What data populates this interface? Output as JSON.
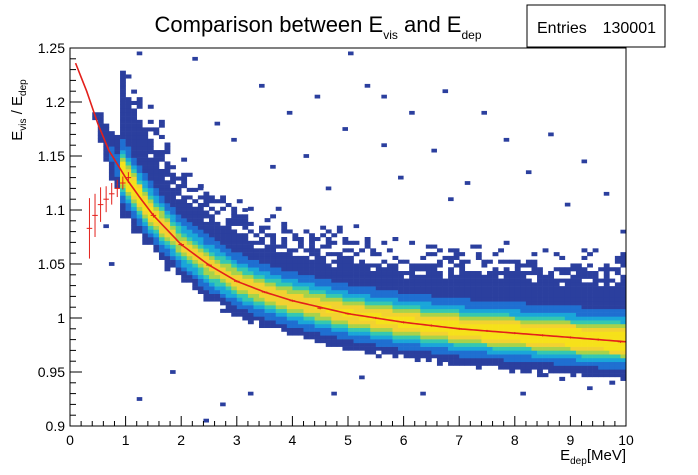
{
  "chart_data": {
    "type": "heatmap",
    "title": {
      "prefix": "Comparison between E",
      "sub1": "vis",
      "middle": "  and E",
      "sub2": "dep"
    },
    "xlabel": {
      "base": "E",
      "sub": "dep",
      "suffix": "[MeV]"
    },
    "ylabel": {
      "base1": "E",
      "sub1": "vis",
      "mid": " / E",
      "sub2": "dep"
    },
    "xlim": [
      0,
      10
    ],
    "ylim": [
      0.9,
      1.25
    ],
    "x_ticks": [
      "0",
      "1",
      "2",
      "3",
      "4",
      "5",
      "6",
      "7",
      "8",
      "9",
      "10"
    ],
    "y_ticks": [
      "0.9",
      "0.95",
      "1",
      "1.05",
      "1.1",
      "1.15",
      "1.2",
      "1.25"
    ],
    "stats_box": {
      "label": "Entries",
      "value": "130001"
    },
    "colors": {
      "palette": [
        "#2b3f9e",
        "#1f6fd1",
        "#1aa6d9",
        "#35c8b0",
        "#a8d24a",
        "#f2d230",
        "#f6e11a"
      ],
      "fit_line": "#e3201b",
      "profile_markers": "#e3201b"
    },
    "fit_curve": {
      "x": [
        0.1,
        0.3,
        0.5,
        0.7,
        1.0,
        1.25,
        1.5,
        2.0,
        2.5,
        3.0,
        3.5,
        4.0,
        5.0,
        6.0,
        7.0,
        8.0,
        9.0,
        10.0
      ],
      "y": [
        1.236,
        1.21,
        1.18,
        1.155,
        1.13,
        1.112,
        1.095,
        1.068,
        1.049,
        1.034,
        1.024,
        1.016,
        1.004,
        0.996,
        0.99,
        0.986,
        0.982,
        0.978
      ]
    },
    "profile_points": {
      "x": [
        0.35,
        0.45,
        0.55,
        0.65,
        0.75,
        0.85,
        0.95,
        1.05,
        1.5,
        2.0,
        2.5,
        3.0,
        3.5,
        4.0,
        4.5,
        5.0,
        5.5,
        6.0,
        6.5,
        7.0,
        7.5,
        8.0,
        8.5,
        9.0,
        9.5,
        9.9
      ],
      "y": [
        1.083,
        1.095,
        1.105,
        1.11,
        1.115,
        1.12,
        1.125,
        1.13,
        1.095,
        1.068,
        1.049,
        1.034,
        1.024,
        1.016,
        1.009,
        1.004,
        1.0,
        0.996,
        0.993,
        0.99,
        0.988,
        0.986,
        0.984,
        0.982,
        0.98,
        0.978
      ],
      "err": [
        0.028,
        0.02,
        0.016,
        0.012,
        0.01,
        0.008,
        0.006,
        0.005,
        0.002,
        0.0015,
        0.0012,
        0.001,
        0.001,
        0.001,
        0.001,
        0.001,
        0.001,
        0.001,
        0.001,
        0.001,
        0.001,
        0.001,
        0.001,
        0.001,
        0.001,
        0.001
      ]
    },
    "density_model": {
      "core_width": 0.012,
      "upper_tail_width": 0.05,
      "lower_tail_width": 0.022,
      "x_start": 0.9,
      "x_end": 10.0,
      "peak_x": 1.15,
      "tail_start_x": 0.3,
      "tail_end_x": 0.95
    },
    "outliers": [
      [
        1.2,
        1.245
      ],
      [
        5.0,
        1.245
      ],
      [
        2.2,
        1.24
      ],
      [
        5.6,
        1.205
      ],
      [
        3.4,
        1.215
      ],
      [
        6.7,
        1.21
      ],
      [
        5.3,
        1.215
      ],
      [
        4.4,
        1.205
      ],
      [
        3.9,
        1.19
      ],
      [
        6.1,
        1.19
      ],
      [
        7.4,
        1.19
      ],
      [
        2.6,
        1.18
      ],
      [
        4.9,
        1.175
      ],
      [
        8.6,
        1.17
      ],
      [
        2.9,
        1.165
      ],
      [
        5.6,
        1.16
      ],
      [
        7.8,
        1.165
      ],
      [
        6.5,
        1.155
      ],
      [
        4.2,
        1.15
      ],
      [
        9.2,
        1.145
      ],
      [
        3.6,
        1.14
      ],
      [
        8.2,
        1.135
      ],
      [
        5.9,
        1.13
      ],
      [
        7.1,
        1.125
      ],
      [
        2.3,
        1.12
      ],
      [
        4.6,
        1.12
      ],
      [
        9.6,
        1.115
      ],
      [
        6.8,
        1.11
      ],
      [
        8.9,
        1.105
      ],
      [
        3.1,
        1.1
      ],
      [
        5.1,
        1.085
      ],
      [
        9.9,
        1.08
      ],
      [
        4.7,
        0.93
      ],
      [
        3.2,
        0.93
      ],
      [
        2.7,
        0.92
      ],
      [
        8.1,
        0.93
      ],
      [
        1.2,
        0.925
      ],
      [
        6.3,
        0.93
      ],
      [
        2.4,
        0.905
      ],
      [
        1.8,
        0.95
      ],
      [
        9.3,
        0.935
      ],
      [
        5.2,
        0.945
      ],
      [
        0.6,
        1.085
      ],
      [
        0.7,
        1.05
      ],
      [
        0.8,
        1.16
      ]
    ]
  }
}
